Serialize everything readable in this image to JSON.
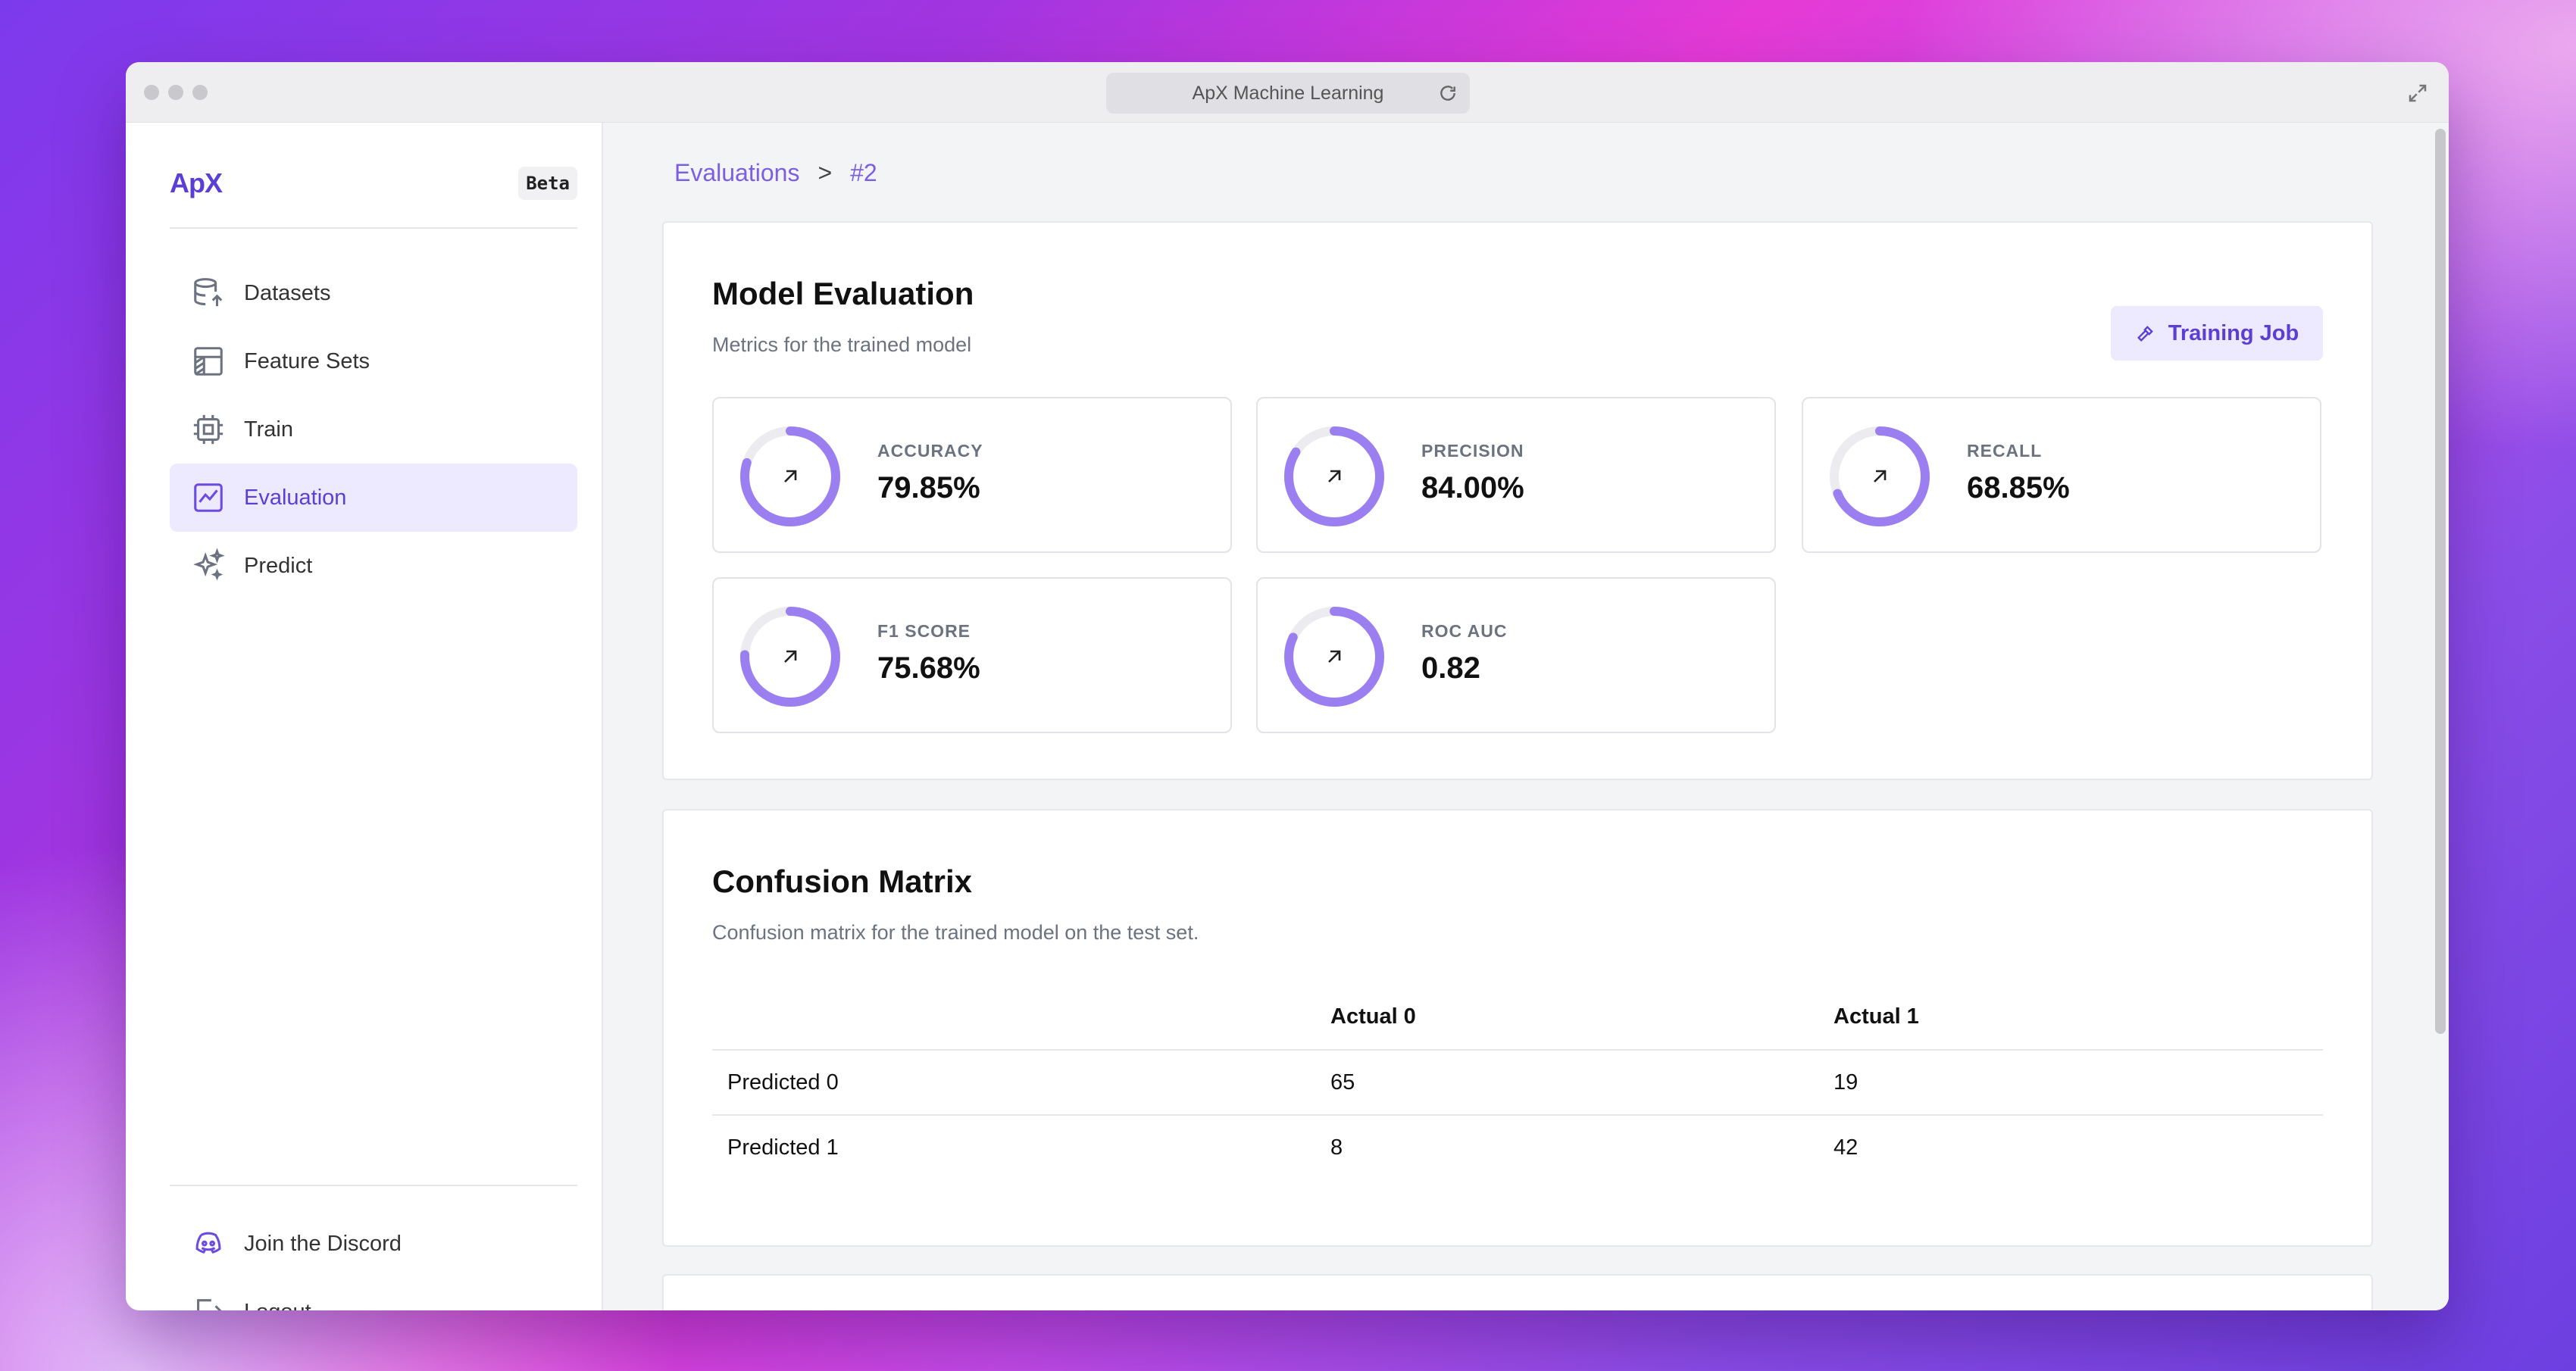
{
  "window": {
    "url_title": "ApX Machine Learning"
  },
  "sidebar": {
    "logo": "ApX",
    "badge": "Beta",
    "items": [
      {
        "label": "Datasets",
        "icon": "database-icon"
      },
      {
        "label": "Feature Sets",
        "icon": "table-icon"
      },
      {
        "label": "Train",
        "icon": "cpu-icon"
      },
      {
        "label": "Evaluation",
        "icon": "chart-icon",
        "active": true
      },
      {
        "label": "Predict",
        "icon": "sparkles-icon"
      }
    ],
    "bottom_items": [
      {
        "label": "Join the Discord",
        "icon": "discord-icon"
      },
      {
        "label": "Logout",
        "icon": "logout-icon"
      }
    ]
  },
  "breadcrumb": {
    "root": "Evaluations",
    "separator": ">",
    "current": "#2"
  },
  "evaluation": {
    "title": "Model Evaluation",
    "subtitle": "Metrics for the trained model",
    "button_label": "Training Job",
    "metrics": [
      {
        "label": "ACCURACY",
        "value": "79.85%",
        "fraction": 0.7985
      },
      {
        "label": "PRECISION",
        "value": "84.00%",
        "fraction": 0.84
      },
      {
        "label": "RECALL",
        "value": "68.85%",
        "fraction": 0.6885
      },
      {
        "label": "F1 SCORE",
        "value": "75.68%",
        "fraction": 0.7568
      },
      {
        "label": "ROC AUC",
        "value": "0.82",
        "fraction": 0.82
      }
    ]
  },
  "confusion": {
    "title": "Confusion Matrix",
    "subtitle": "Confusion matrix for the trained model on the test set.",
    "headers": [
      "",
      "Actual 0",
      "Actual 1"
    ],
    "rows": [
      {
        "label": "Predicted 0",
        "values": [
          "65",
          "19"
        ]
      },
      {
        "label": "Predicted 1",
        "values": [
          "8",
          "42"
        ]
      }
    ]
  },
  "colors": {
    "accent": "#7c5fe0",
    "ring_track": "#ececf0",
    "ring_fill": "#9b7ff0"
  }
}
